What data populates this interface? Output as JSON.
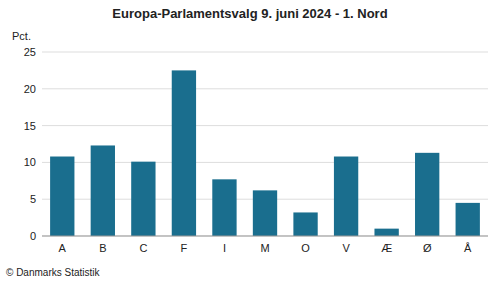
{
  "chart_data": {
    "type": "bar",
    "title": "Europa-Parlamentsvalg 9. juni 2024 - 1. Nord",
    "categories": [
      "A",
      "B",
      "C",
      "F",
      "I",
      "M",
      "O",
      "V",
      "Æ",
      "Ø",
      "Å"
    ],
    "values": [
      10.8,
      12.3,
      10.1,
      22.5,
      7.7,
      6.2,
      3.2,
      10.8,
      1.0,
      11.3,
      4.5
    ],
    "color": "#1a6e8e",
    "ylabel": "Pct.",
    "footer": "© Danmarks Statistik",
    "ylim": [
      0,
      25
    ],
    "yticks": [
      0,
      5,
      10,
      15,
      20,
      25
    ],
    "grid": true
  }
}
